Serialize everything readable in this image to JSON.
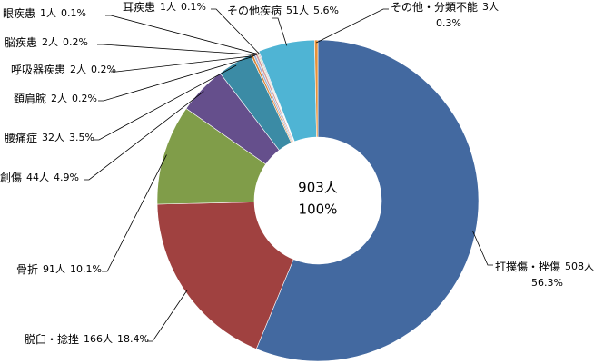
{
  "chart_data": {
    "type": "donut",
    "categories": [
      "打撲傷・挫傷",
      "脱臼・捻挫",
      "骨折",
      "創傷",
      "腰痛症",
      "頚肩腕",
      "呼吸器疾患",
      "脳疾患",
      "眼疾患",
      "耳疾患",
      "その他疾病",
      "その他・分類不能"
    ],
    "values": [
      508,
      166,
      91,
      44,
      32,
      2,
      2,
      2,
      1,
      1,
      51,
      3
    ],
    "value_labels": [
      "508人",
      "166人",
      "91人",
      "44人",
      "32人",
      "2人",
      "2人",
      "2人",
      "1人",
      "1人",
      "51人",
      "3人"
    ],
    "percent_labels": [
      "56.3%",
      "18.4%",
      "10.1%",
      "4.9%",
      "3.5%",
      "0.2%",
      "0.2%",
      "0.2%",
      "0.1%",
      "0.1%",
      "5.6%",
      "0.3%"
    ],
    "colors": [
      "#4369a0",
      "#a04140",
      "#809d49",
      "#654f8c",
      "#3b8ba5",
      "#d9873a",
      "#9fb3d6",
      "#d79b9b",
      "#c2d59f",
      "#b3a7c9",
      "#4fb4d4",
      "#e8923a"
    ],
    "center_labels": [
      "903人",
      "100%"
    ]
  }
}
